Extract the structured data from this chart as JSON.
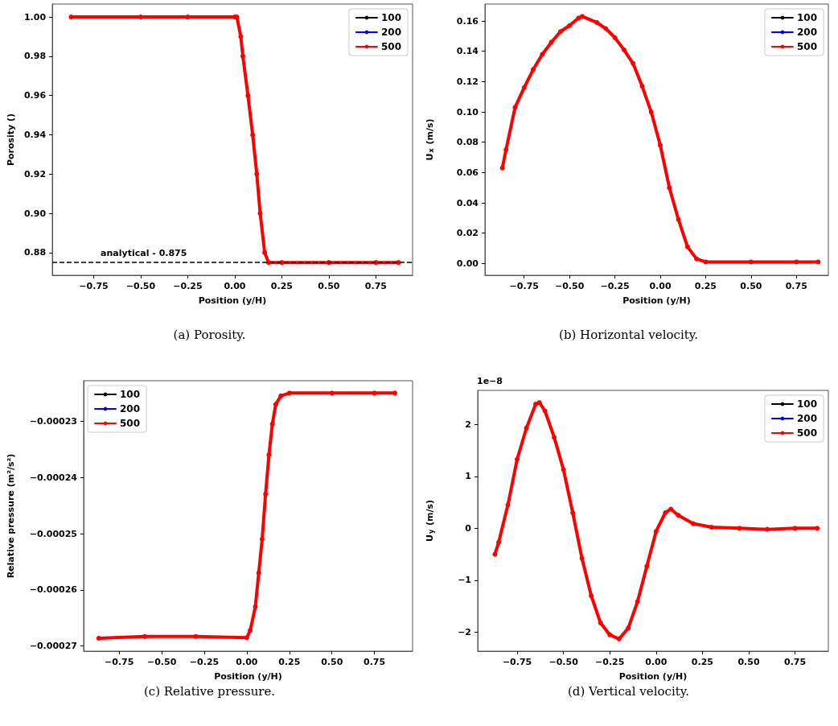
{
  "chart_data": [
    {
      "type": "line",
      "xlabel": "Position (y/H)",
      "ylabel": "Porosity ()",
      "annotations": [
        "(a) Porosity."
      ],
      "legend": "top right",
      "marker": "circle",
      "line_style": "solid",
      "xlim": [
        -0.97,
        0.945
      ],
      "ylim": [
        0.8685,
        1.0066
      ],
      "xticks": [
        {
          "value": -0.75,
          "label": "−0.75"
        },
        {
          "value": -0.5,
          "label": "−0.50"
        },
        {
          "value": -0.25,
          "label": "−0.25"
        },
        {
          "value": 0,
          "label": "0.00"
        },
        {
          "value": 0.25,
          "label": "0.25"
        },
        {
          "value": 0.5,
          "label": "0.50"
        },
        {
          "value": 0.75,
          "label": "0.75"
        }
      ],
      "yticks": [
        {
          "value": 0.88,
          "label": "0.88"
        },
        {
          "value": 0.9,
          "label": "0.90"
        },
        {
          "value": 0.92,
          "label": "0.92"
        },
        {
          "value": 0.94,
          "label": "0.94"
        },
        {
          "value": 0.96,
          "label": "0.96"
        },
        {
          "value": 0.98,
          "label": "0.98"
        },
        {
          "value": 1,
          "label": "1.00"
        }
      ],
      "ref_lines": [
        {
          "axis": "y",
          "value": 0.875,
          "label": "analytical - 0.875",
          "color": "#000000",
          "line_style": "dashed"
        }
      ],
      "x": [
        -0.87,
        -0.5,
        -0.25,
        0,
        0.011,
        0.032,
        0.043,
        0.07,
        0.095,
        0.117,
        0.135,
        0.159,
        0.18,
        0.25,
        0.5,
        0.75,
        0.87
      ],
      "series": [
        {
          "name": "100",
          "color": "#000000",
          "values": [
            null,
            null,
            null,
            null,
            null,
            null,
            null,
            null,
            null,
            null,
            null,
            null,
            null,
            null,
            null,
            null,
            null
          ]
        },
        {
          "name": "200",
          "color": "#0000ff",
          "values": [
            null,
            null,
            null,
            null,
            null,
            null,
            null,
            null,
            null,
            null,
            null,
            null,
            null,
            null,
            null,
            null,
            null
          ]
        },
        {
          "name": "500",
          "color": "#ff0000",
          "values": [
            1,
            1,
            1,
            1,
            1,
            0.99,
            0.98,
            0.96,
            0.94,
            0.92,
            0.9,
            0.88,
            0.875,
            0.875,
            0.875,
            0.875,
            0.875
          ]
        }
      ]
    },
    {
      "type": "line",
      "xlabel": "Position (y/H)",
      "ylabel": "U$_{x}$ (m/s)",
      "annotations": [
        "(b) Horizontal velocity."
      ],
      "legend": "top right",
      "marker": "circle",
      "line_style": "solid",
      "xlim": [
        -0.966,
        0.926
      ],
      "ylim": [
        -0.0078,
        0.1712
      ],
      "xticks": [
        {
          "value": -0.75,
          "label": "−0.75"
        },
        {
          "value": -0.5,
          "label": "−0.50"
        },
        {
          "value": -0.25,
          "label": "−0.25"
        },
        {
          "value": 0,
          "label": "0.00"
        },
        {
          "value": 0.25,
          "label": "0.25"
        },
        {
          "value": 0.5,
          "label": "0.50"
        },
        {
          "value": 0.75,
          "label": "0.75"
        }
      ],
      "yticks": [
        {
          "value": 0,
          "label": "0.00"
        },
        {
          "value": 0.02,
          "label": "0.02"
        },
        {
          "value": 0.04,
          "label": "0.04"
        },
        {
          "value": 0.06,
          "label": "0.06"
        },
        {
          "value": 0.08,
          "label": "0.08"
        },
        {
          "value": 0.1,
          "label": "0.10"
        },
        {
          "value": 0.12,
          "label": "0.12"
        },
        {
          "value": 0.14,
          "label": "0.14"
        },
        {
          "value": 0.16,
          "label": "0.16"
        }
      ],
      "x": [
        -0.87,
        -0.85,
        -0.8,
        -0.75,
        -0.7,
        -0.65,
        -0.6,
        -0.55,
        -0.5,
        -0.45,
        -0.43,
        -0.35,
        -0.3,
        -0.25,
        -0.2,
        -0.15,
        -0.1,
        -0.05,
        0,
        0.05,
        0.1,
        0.15,
        0.2,
        0.25,
        0.5,
        0.75,
        0.87
      ],
      "series": [
        {
          "name": "100",
          "color": "#000000",
          "values": [
            null,
            null,
            null,
            null,
            null,
            null,
            null,
            null,
            null,
            null,
            null,
            null,
            null,
            null,
            null,
            null,
            null,
            null,
            null,
            null,
            null,
            null,
            null,
            null,
            null,
            null,
            null
          ]
        },
        {
          "name": "200",
          "color": "#0000ff",
          "values": [
            null,
            null,
            null,
            null,
            null,
            null,
            null,
            null,
            null,
            null,
            null,
            null,
            null,
            null,
            null,
            null,
            null,
            null,
            null,
            null,
            null,
            null,
            null,
            null,
            null,
            null,
            null
          ]
        },
        {
          "name": "500",
          "color": "#ff0000",
          "values": [
            0.063,
            0.075,
            0.103,
            0.116,
            0.128,
            0.138,
            0.146,
            0.153,
            0.157,
            0.162,
            0.163,
            0.159,
            0.155,
            0.149,
            0.141,
            0.132,
            0.117,
            0.1,
            0.078,
            0.05,
            0.029,
            0.011,
            0.003,
            0.001,
            0.001,
            0.001,
            0.001
          ]
        }
      ]
    },
    {
      "type": "line",
      "xlabel": "Position (y/H)",
      "ylabel": "Relative pressure (m²/s²)",
      "annotations": [
        "(c) Relative pressure."
      ],
      "legend": "top left",
      "marker": "circle",
      "line_style": "solid",
      "xlim": [
        -0.959,
        0.974
      ],
      "ylim": [
        -0.0002709,
        -0.0002228
      ],
      "xticks": [
        {
          "value": -0.75,
          "label": "−0.75"
        },
        {
          "value": -0.5,
          "label": "−0.50"
        },
        {
          "value": -0.25,
          "label": "−0.25"
        },
        {
          "value": 0,
          "label": "0.00"
        },
        {
          "value": 0.25,
          "label": "0.25"
        },
        {
          "value": 0.5,
          "label": "0.50"
        },
        {
          "value": 0.75,
          "label": "0.75"
        }
      ],
      "yticks": [
        {
          "value": -0.00027,
          "label": "−0.00027"
        },
        {
          "value": -0.00026,
          "label": "−0.00026"
        },
        {
          "value": -0.00025,
          "label": "−0.00025"
        },
        {
          "value": -0.00024,
          "label": "−0.00024"
        },
        {
          "value": -0.00023,
          "label": "−0.00023"
        }
      ],
      "x": [
        -0.87,
        -0.6,
        -0.3,
        0,
        0.02,
        0.05,
        0.07,
        0.09,
        0.11,
        0.13,
        0.15,
        0.17,
        0.2,
        0.25,
        0.5,
        0.75,
        0.87
      ],
      "series": [
        {
          "name": "100",
          "color": "#000000",
          "values": [
            null,
            null,
            null,
            null,
            null,
            null,
            null,
            null,
            null,
            null,
            null,
            null,
            null,
            null,
            null,
            null,
            null
          ]
        },
        {
          "name": "200",
          "color": "#0000ff",
          "values": [
            null,
            null,
            null,
            null,
            null,
            null,
            null,
            null,
            null,
            null,
            null,
            null,
            null,
            null,
            null,
            null,
            null
          ]
        },
        {
          "name": "500",
          "color": "#ff0000",
          "values": [
            -0.0002686,
            -0.0002683,
            -0.0002683,
            -0.0002685,
            -0.0002672,
            -0.000263,
            -0.000257,
            -0.000251,
            -0.000243,
            -0.000236,
            -0.0002305,
            -0.000227,
            -0.0002255,
            -0.000225,
            -0.000225,
            -0.000225,
            -0.000225
          ]
        }
      ]
    },
    {
      "type": "line",
      "xlabel": "Position (y/H)",
      "ylabel": "U$_{y}$ (m/s)",
      "annotations": [
        "(d) Vertical velocity.",
        "1e−8"
      ],
      "legend": "top right",
      "marker": "circle",
      "line_style": "solid",
      "xlim": [
        -0.963,
        0.93
      ],
      "ylim": [
        -2.365,
        2.655
      ],
      "xticks": [
        {
          "value": -0.75,
          "label": "−0.75"
        },
        {
          "value": -0.5,
          "label": "−0.50"
        },
        {
          "value": -0.25,
          "label": "−0.25"
        },
        {
          "value": 0,
          "label": "0.00"
        },
        {
          "value": 0.25,
          "label": "0.25"
        },
        {
          "value": 0.5,
          "label": "0.50"
        },
        {
          "value": 0.75,
          "label": "0.75"
        }
      ],
      "yticks": [
        {
          "value": -2,
          "label": "−2"
        },
        {
          "value": -1,
          "label": "−1"
        },
        0,
        1,
        2
      ],
      "x": [
        -0.87,
        -0.85,
        -0.8,
        -0.75,
        -0.7,
        -0.65,
        -0.63,
        -0.6,
        -0.55,
        -0.5,
        -0.45,
        -0.4,
        -0.35,
        -0.3,
        -0.25,
        -0.2,
        -0.15,
        -0.1,
        -0.05,
        0,
        0.05,
        0.08,
        0.12,
        0.2,
        0.3,
        0.45,
        0.6,
        0.75,
        0.87
      ],
      "series": [
        {
          "name": "100",
          "color": "#000000",
          "values": [
            null,
            null,
            null,
            null,
            null,
            null,
            null,
            null,
            null,
            null,
            null,
            null,
            null,
            null,
            null,
            null,
            null,
            null,
            null,
            null,
            null,
            null,
            null,
            null,
            null,
            null,
            null,
            null,
            null
          ]
        },
        {
          "name": "200",
          "color": "#0000ff",
          "values": [
            null,
            null,
            null,
            null,
            null,
            null,
            null,
            null,
            null,
            null,
            null,
            null,
            null,
            null,
            null,
            null,
            null,
            null,
            null,
            null,
            null,
            null,
            null,
            null,
            null,
            null,
            null,
            null,
            null
          ]
        },
        {
          "name": "500",
          "color": "#ff0000",
          "values": [
            -0.5,
            -0.27,
            0.45,
            1.33,
            1.93,
            2.39,
            2.42,
            2.26,
            1.75,
            1.13,
            0.3,
            -0.58,
            -1.3,
            -1.82,
            -2.05,
            -2.13,
            -1.92,
            -1.41,
            -0.73,
            -0.06,
            0.3,
            0.37,
            0.25,
            0.09,
            0.02,
            0,
            -0.02,
            0,
            0
          ]
        }
      ]
    }
  ]
}
